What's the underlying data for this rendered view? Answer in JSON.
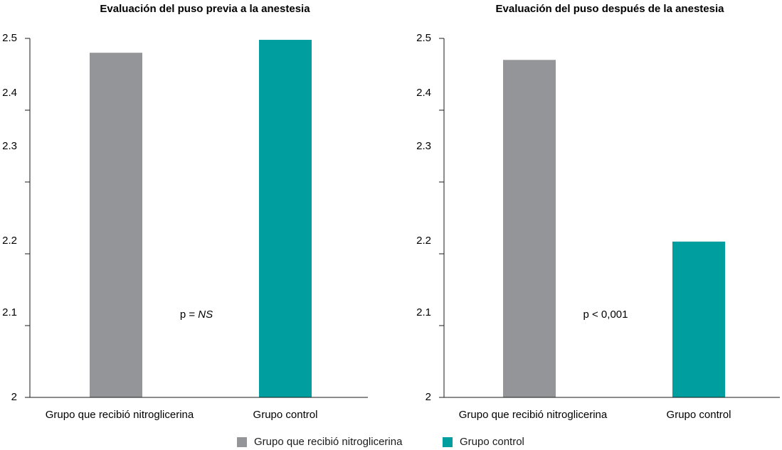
{
  "chart_data": [
    {
      "type": "bar",
      "title": "Evaluación del puso previa a la anestesia",
      "categories": [
        "Grupo que recibió nitroglicerina",
        "Grupo control"
      ],
      "values": [
        2.48,
        2.498
      ],
      "colors": [
        "#939598",
        "#009e9f"
      ],
      "ylim": [
        2,
        2.5
      ],
      "yticks": [
        2,
        2.1,
        2.2,
        2.3,
        2.4,
        2.5
      ],
      "ytick_labels": [
        "2",
        "2.1",
        "2.2",
        "2.3",
        "2.4",
        "2.5"
      ],
      "annotation": {
        "prefix": "p = ",
        "value": "NS",
        "value_italic": true
      },
      "grid": false
    },
    {
      "type": "bar",
      "title": "Evaluación del puso después de la anestesia",
      "categories": [
        "Grupo que recibió nitroglicerina",
        "Grupo control"
      ],
      "values": [
        2.47,
        2.217
      ],
      "colors": [
        "#939598",
        "#009e9f"
      ],
      "ylim": [
        2,
        2.5
      ],
      "yticks": [
        2,
        2.1,
        2.2,
        2.3,
        2.4,
        2.5
      ],
      "ytick_labels": [
        "2",
        "2.1",
        "2.2",
        "2.3",
        "2.4",
        "2.5"
      ],
      "annotation": {
        "prefix": "p < 0,001",
        "value": "",
        "value_italic": false
      },
      "grid": false
    }
  ],
  "legend": {
    "placement": "bottom-center",
    "items": [
      {
        "label": "Grupo que recibió nitroglicerina",
        "color": "#939598"
      },
      {
        "label": "Grupo control",
        "color": "#009e9f"
      }
    ]
  }
}
